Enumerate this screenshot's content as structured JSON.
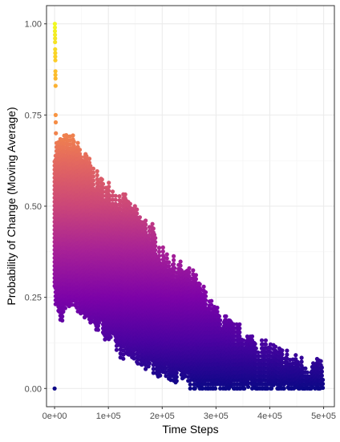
{
  "chart_data": {
    "type": "scatter",
    "title": "",
    "xlabel": "Time Steps",
    "ylabel": "Probability of Change (Moving Average)",
    "xlim": [
      -15000,
      520000
    ],
    "ylim": [
      -0.05,
      1.05
    ],
    "x_ticks": [
      0,
      100000,
      200000,
      300000,
      400000,
      500000
    ],
    "x_tick_labels": [
      "0e+00",
      "1e+05",
      "2e+05",
      "3e+05",
      "4e+05",
      "5e+05"
    ],
    "y_ticks": [
      0,
      0.25,
      0.5,
      0.75,
      1.0
    ],
    "y_tick_labels": [
      "0.00",
      "0.25",
      "0.50",
      "0.75",
      "1.00"
    ],
    "grid": true,
    "legend": "none",
    "color_scale": "plasma",
    "color_mapped_to": "y",
    "envelope": {
      "x": [
        0,
        5000,
        10000,
        20000,
        30000,
        40000,
        50000,
        60000,
        80000,
        100000,
        120000,
        150000,
        180000,
        200000,
        230000,
        260000,
        300000,
        330000,
        360000,
        400000,
        430000,
        450000,
        470000,
        500000
      ],
      "upper": [
        0.66,
        0.66,
        0.67,
        0.67,
        0.67,
        0.66,
        0.64,
        0.62,
        0.56,
        0.54,
        0.52,
        0.47,
        0.43,
        0.36,
        0.33,
        0.29,
        0.2,
        0.16,
        0.13,
        0.1,
        0.08,
        0.07,
        0.06,
        0.05
      ],
      "lower": [
        0.26,
        0.22,
        0.2,
        0.22,
        0.24,
        0.24,
        0.22,
        0.2,
        0.18,
        0.15,
        0.11,
        0.09,
        0.07,
        0.05,
        0.04,
        0.01,
        0.01,
        0.01,
        0.01,
        0.0,
        0.0,
        0.0,
        0.0,
        0.0
      ]
    },
    "early_points": [
      {
        "x": 0,
        "y": 0.0
      },
      {
        "x": 500,
        "y": 1.0
      },
      {
        "x": 600,
        "y": 0.99
      },
      {
        "x": 700,
        "y": 0.98
      },
      {
        "x": 800,
        "y": 0.97
      },
      {
        "x": 900,
        "y": 0.96
      },
      {
        "x": 1000,
        "y": 0.95
      },
      {
        "x": 1100,
        "y": 0.93
      },
      {
        "x": 1200,
        "y": 0.92
      },
      {
        "x": 1300,
        "y": 0.91
      },
      {
        "x": 1400,
        "y": 0.9
      },
      {
        "x": 1500,
        "y": 0.87
      },
      {
        "x": 1600,
        "y": 0.86
      },
      {
        "x": 1700,
        "y": 0.85
      },
      {
        "x": 1800,
        "y": 0.83
      },
      {
        "x": 2000,
        "y": 0.75
      },
      {
        "x": 2200,
        "y": 0.73
      },
      {
        "x": 2400,
        "y": 0.7
      }
    ]
  }
}
